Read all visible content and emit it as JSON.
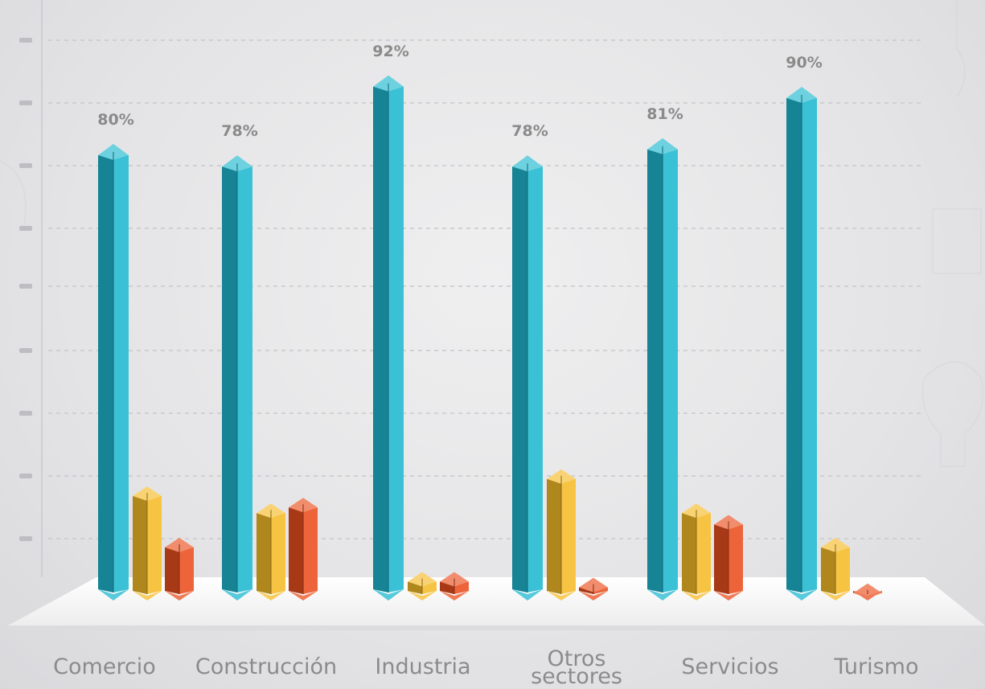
{
  "chart_data": {
    "type": "bar",
    "categories": [
      "Comercio",
      "Construcción",
      "Industria",
      "Otros sectores",
      "Servicios",
      "Turismo"
    ],
    "series": [
      {
        "values": [
          80,
          78,
          92,
          78,
          81,
          90
        ],
        "color": "#1fb8cf"
      },
      {
        "values": [
          20,
          17,
          5,
          23,
          17,
          11
        ],
        "color": "#f5bc28"
      },
      {
        "values": [
          11,
          18,
          5,
          4,
          15,
          3
        ],
        "color": "#ea4f1f"
      }
    ],
    "data_labels": [
      "80%",
      "78%",
      "92%",
      "78%",
      "81%",
      "90%"
    ],
    "ylim": [
      0,
      100
    ],
    "grid": true,
    "legend": "none"
  }
}
